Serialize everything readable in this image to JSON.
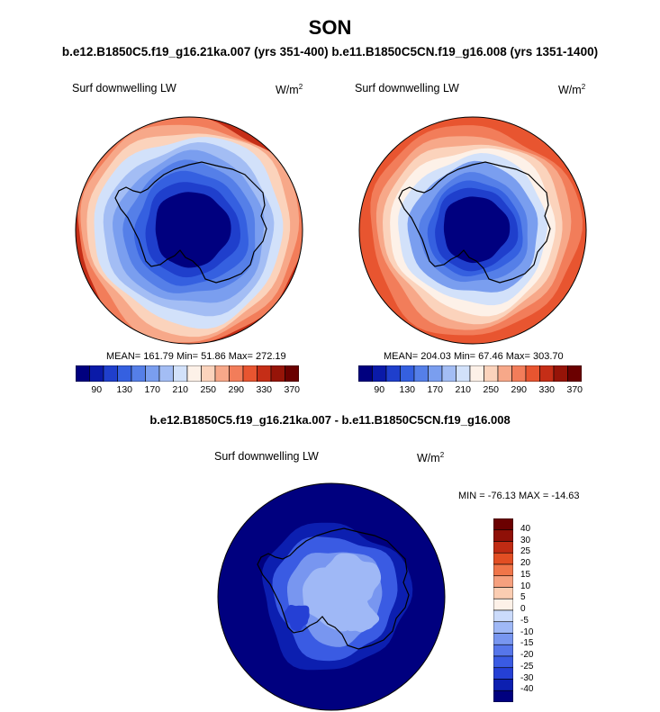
{
  "title": "SON",
  "subtitle": "b.e12.B1850C5.f19_g16.21ka.007 (yrs 351-400) b.e11.B1850C5CN.f19_g16.008 (yrs 1351-1400)",
  "colors": {
    "abs_scale": [
      "#00007f",
      "#0a1aa8",
      "#1f3fcc",
      "#3560e0",
      "#557fe8",
      "#7a9eef",
      "#a3bdf4",
      "#d2e1fa",
      "#fdf1e8",
      "#fbd3bc",
      "#f7a889",
      "#f27d5a",
      "#e85530",
      "#c52e17",
      "#961408",
      "#6b0000"
    ],
    "diff_scale": [
      "#00007f",
      "#0c1fb0",
      "#2540d5",
      "#3a5be3",
      "#5676ea",
      "#7896f0",
      "#9fb8f6",
      "#cbdbfb",
      "#fdf1e8",
      "#fbcdb2",
      "#f6a07e",
      "#f07549",
      "#e24e23",
      "#c02b13",
      "#8f1007",
      "#6b0000"
    ]
  },
  "chart_data": [
    {
      "type": "heatmap",
      "projection": "south-polar-stereographic",
      "label": "Surf downwelling LW",
      "units_base": "W/m",
      "units_exp": "2",
      "stats": {
        "mean": "161.79",
        "min": "51.86",
        "max": "272.19"
      },
      "stats_text": "MEAN= 161.79  Min=  51.86  Max= 272.19",
      "colorbar_ticks": [
        "90",
        "130",
        "170",
        "210",
        "250",
        "290",
        "330",
        "370"
      ],
      "levels": [
        70,
        90,
        110,
        130,
        150,
        170,
        190,
        210,
        230,
        250,
        270,
        290,
        310,
        330,
        350,
        370
      ],
      "ring_levels": [
        {
          "level": 13,
          "frac": 1.0
        },
        {
          "level": 11,
          "frac": 0.97
        },
        {
          "level": 10,
          "frac": 0.92
        },
        {
          "level": 9,
          "frac": 0.86
        },
        {
          "level": 7,
          "frac": 0.8
        },
        {
          "level": 6,
          "frac": 0.72
        },
        {
          "level": 5,
          "frac": 0.64
        },
        {
          "level": 4,
          "frac": 0.56
        },
        {
          "level": 3,
          "frac": 0.48
        },
        {
          "level": 2,
          "frac": 0.4
        },
        {
          "level": 0,
          "frac": 0.32
        }
      ]
    },
    {
      "type": "heatmap",
      "projection": "south-polar-stereographic",
      "label": "Surf downwelling LW",
      "units_base": "W/m",
      "units_exp": "2",
      "stats": {
        "mean": "204.03",
        "min": "67.46",
        "max": "303.70"
      },
      "stats_text": "MEAN= 204.03  Min=  67.46  Max= 303.70",
      "colorbar_ticks": [
        "90",
        "130",
        "170",
        "210",
        "250",
        "290",
        "330",
        "370"
      ],
      "levels": [
        70,
        90,
        110,
        130,
        150,
        170,
        190,
        210,
        230,
        250,
        270,
        290,
        310,
        330,
        350,
        370
      ],
      "ring_levels": [
        {
          "level": 12,
          "frac": 1.0
        },
        {
          "level": 11,
          "frac": 0.89
        },
        {
          "level": 10,
          "frac": 0.82
        },
        {
          "level": 9,
          "frac": 0.76
        },
        {
          "level": 8,
          "frac": 0.7
        },
        {
          "level": 7,
          "frac": 0.63
        },
        {
          "level": 5,
          "frac": 0.55
        },
        {
          "level": 4,
          "frac": 0.46
        },
        {
          "level": 3,
          "frac": 0.4
        },
        {
          "level": 2,
          "frac": 0.35
        },
        {
          "level": 0,
          "frac": 0.28
        }
      ]
    },
    {
      "type": "heatmap",
      "projection": "south-polar-stereographic",
      "title": "b.e12.B1850C5.f19_g16.21ka.007 - b.e11.B1850C5CN.f19_g16.008",
      "label": "Surf downwelling LW",
      "units_base": "W/m",
      "units_exp": "2",
      "stats": {
        "min": "-76.13",
        "max": "-14.63"
      },
      "stats_text": "MIN = -76.13 MAX = -14.63",
      "colorbar_ticks": [
        "40",
        "30",
        "25",
        "20",
        "15",
        "10",
        "5",
        "0",
        "-5",
        "-10",
        "-15",
        "-20",
        "-25",
        "-30",
        "-40"
      ],
      "levels": [
        -40,
        -30,
        -25,
        -20,
        -15,
        -10,
        -5,
        0,
        5,
        10,
        15,
        20,
        25,
        30,
        40
      ],
      "ring_levels": [
        {
          "level": 0,
          "frac": 1.0
        },
        {
          "level": 1,
          "frac": 0.62
        },
        {
          "level": 3,
          "frac": 0.52
        },
        {
          "level": 5,
          "frac": 0.4
        },
        {
          "level": 6,
          "frac": 0.28
        }
      ]
    }
  ]
}
